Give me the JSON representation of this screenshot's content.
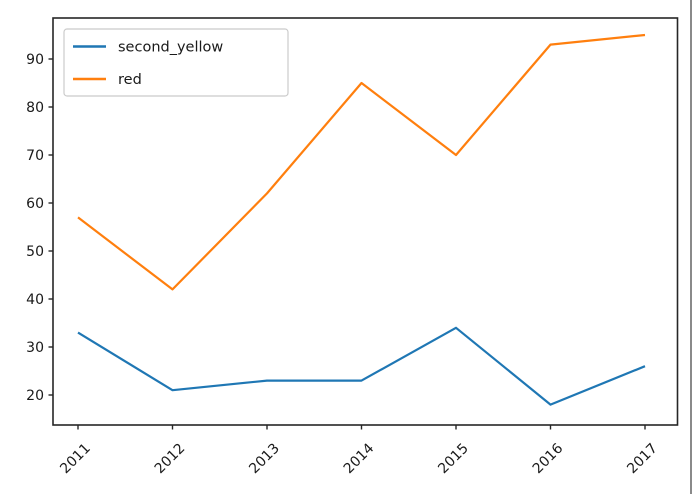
{
  "chart_data": {
    "type": "line",
    "title": "",
    "xlabel": "",
    "ylabel": "",
    "categories": [
      "2011",
      "2012",
      "2013",
      "2014",
      "2015",
      "2016",
      "2017"
    ],
    "series": [
      {
        "name": "second_yellow",
        "color": "#1f77b4",
        "values": [
          33,
          21,
          23,
          23,
          34,
          18,
          26
        ]
      },
      {
        "name": "red",
        "color": "#ff7f0e",
        "values": [
          57,
          42,
          62,
          85,
          70,
          93,
          95
        ]
      }
    ],
    "yticks": [
      20,
      30,
      40,
      50,
      60,
      70,
      80,
      90
    ],
    "ylim": [
      14.15,
      98.85
    ],
    "x_tick_rotation_deg": 45,
    "grid": false,
    "legend_position": "upper left",
    "background_color": "#ffffff",
    "axis_color": "#262626",
    "tick_label_color": "#1a1a1a",
    "legend_border_color": "#cbcbcb"
  }
}
